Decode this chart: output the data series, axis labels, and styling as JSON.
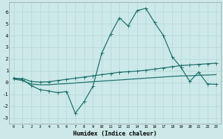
{
  "xlabel": "Humidex (Indice chaleur)",
  "background_color": "#cce8e8",
  "line_color": "#1a6e6a",
  "xlim": [
    -0.5,
    23.5
  ],
  "ylim": [
    -3.5,
    6.8
  ],
  "xticks": [
    0,
    1,
    2,
    3,
    4,
    5,
    6,
    7,
    8,
    9,
    10,
    11,
    12,
    13,
    14,
    15,
    16,
    17,
    18,
    19,
    20,
    21,
    22,
    23
  ],
  "yticks": [
    -3,
    -2,
    -1,
    0,
    1,
    2,
    3,
    4,
    5,
    6
  ],
  "x": [
    0,
    1,
    2,
    3,
    4,
    5,
    6,
    7,
    8,
    9,
    10,
    11,
    12,
    13,
    14,
    15,
    16,
    17,
    18,
    19,
    20,
    21,
    22,
    23
  ],
  "y_wavy": [
    0.4,
    0.25,
    -0.25,
    -0.6,
    -0.7,
    -0.85,
    -0.75,
    -2.6,
    -1.6,
    -0.3,
    2.5,
    4.1,
    5.5,
    4.8,
    6.1,
    6.3,
    5.1,
    4.0,
    2.2,
    1.3,
    0.1,
    0.9,
    -0.1,
    -0.15
  ],
  "y_line1": [
    0.35,
    0.35,
    0.1,
    0.05,
    0.08,
    0.18,
    0.28,
    0.38,
    0.48,
    0.58,
    0.68,
    0.78,
    0.88,
    0.93,
    0.98,
    1.05,
    1.15,
    1.25,
    1.35,
    1.45,
    1.5,
    1.55,
    1.6,
    1.65
  ],
  "y_line2": [
    0.3,
    0.18,
    -0.12,
    -0.18,
    -0.18,
    -0.12,
    -0.08,
    -0.03,
    0.03,
    0.08,
    0.13,
    0.18,
    0.23,
    0.28,
    0.33,
    0.38,
    0.43,
    0.48,
    0.53,
    0.57,
    0.58,
    0.62,
    0.65,
    0.68
  ],
  "linewidth": 0.9,
  "markersize": 2.0
}
